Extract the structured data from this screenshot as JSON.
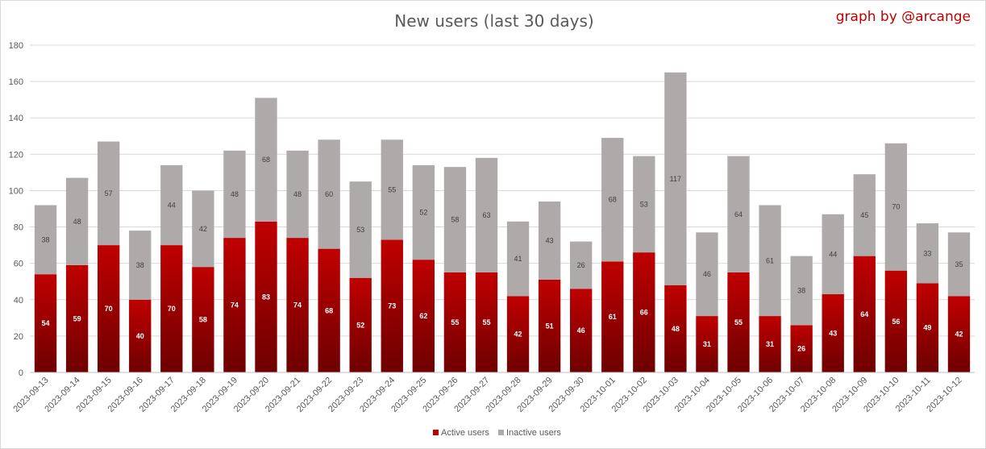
{
  "chart_data": {
    "type": "bar",
    "stacked": true,
    "title": "New users (last 30 days)",
    "watermark": "graph by @arcange",
    "xlabel": "",
    "ylabel": "",
    "ylim": [
      0,
      180
    ],
    "yticks": [
      0,
      20,
      40,
      60,
      80,
      100,
      120,
      140,
      160,
      180
    ],
    "grid": true,
    "legend_position": "bottom",
    "categories": [
      "2023-09-13",
      "2023-09-14",
      "2023-09-15",
      "2023-09-16",
      "2023-09-17",
      "2023-09-18",
      "2023-09-19",
      "2023-09-20",
      "2023-09-21",
      "2023-09-22",
      "2023-09-23",
      "2023-09-24",
      "2023-09-25",
      "2023-09-26",
      "2023-09-27",
      "2023-09-28",
      "2023-09-29",
      "2023-09-30",
      "2023-10-01",
      "2023-10-02",
      "2023-10-03",
      "2023-10-04",
      "2023-10-05",
      "2023-10-06",
      "2023-10-07",
      "2023-10-08",
      "2023-10-09",
      "2023-10-10",
      "2023-10-11",
      "2023-10-12"
    ],
    "series": [
      {
        "name": "Active users",
        "color": "#c00000",
        "color_dark": "#6e0000",
        "values": [
          54,
          59,
          70,
          40,
          70,
          58,
          74,
          83,
          74,
          68,
          52,
          73,
          62,
          55,
          55,
          42,
          51,
          46,
          61,
          66,
          48,
          31,
          55,
          31,
          26,
          43,
          64,
          56,
          49,
          42
        ]
      },
      {
        "name": "Inactive users",
        "color": "#aeaaaa",
        "values": [
          38,
          48,
          57,
          38,
          44,
          42,
          48,
          68,
          48,
          60,
          53,
          55,
          52,
          58,
          63,
          41,
          43,
          26,
          68,
          53,
          117,
          46,
          64,
          61,
          38,
          44,
          45,
          70,
          33,
          35
        ]
      }
    ]
  }
}
